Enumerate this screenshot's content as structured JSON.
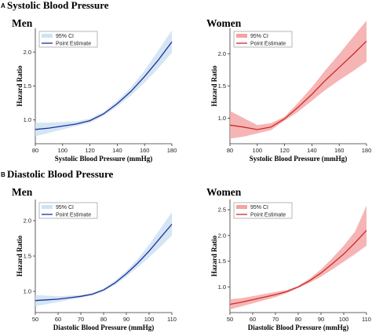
{
  "sections": [
    {
      "letter": "A",
      "title": "Systolic Blood Pressure"
    },
    {
      "letter": "B",
      "title": "Diastolic Blood Pressure"
    }
  ],
  "legend": {
    "ci_label": "95% CI",
    "estimate_label": "Point Estimate"
  },
  "colors": {
    "men_line": "#1f2f9e",
    "men_band": "#cfe3f2",
    "women_line": "#cc2a2a",
    "women_band": "#f4a3a3"
  },
  "chart_data": [
    {
      "type": "line",
      "panel": "Men",
      "xlabel": "Systolic Blood Pressure (mmHg)",
      "ylabel": "Hazard Ratio",
      "xlim": [
        80,
        180
      ],
      "ylim": [
        0.65,
        2.35
      ],
      "xticks": [
        80,
        100,
        120,
        140,
        160,
        180
      ],
      "yticks": [
        1.0,
        1.5,
        2.0
      ],
      "series": [
        {
          "name": "Point Estimate",
          "x": [
            80,
            90,
            100,
            110,
            120,
            130,
            140,
            150,
            160,
            170,
            180
          ],
          "y": [
            0.86,
            0.88,
            0.91,
            0.94,
            0.99,
            1.09,
            1.24,
            1.42,
            1.64,
            1.88,
            2.15
          ]
        },
        {
          "name": "95% CI",
          "x": [
            80,
            90,
            100,
            110,
            120,
            130,
            140,
            150,
            160,
            170,
            180
          ],
          "lower": [
            0.76,
            0.81,
            0.86,
            0.91,
            0.96,
            1.06,
            1.2,
            1.36,
            1.55,
            1.76,
            1.99
          ],
          "upper": [
            0.96,
            0.96,
            0.97,
            0.98,
            1.02,
            1.12,
            1.28,
            1.48,
            1.73,
            2.02,
            2.32
          ]
        }
      ]
    },
    {
      "type": "line",
      "panel": "Women",
      "xlabel": "Systolic Blood Pressure (mmHg)",
      "ylabel": "Hazard Ratio",
      "xlim": [
        80,
        180
      ],
      "ylim": [
        0.6,
        2.4
      ],
      "xticks": [
        80,
        100,
        120,
        140,
        160,
        180
      ],
      "yticks": [
        1.0,
        1.5,
        2.0
      ],
      "series": [
        {
          "name": "Point Estimate",
          "x": [
            80,
            90,
            100,
            110,
            120,
            130,
            140,
            150,
            160,
            170,
            180
          ],
          "y": [
            0.89,
            0.86,
            0.82,
            0.86,
            0.99,
            1.17,
            1.37,
            1.59,
            1.79,
            1.99,
            2.2
          ]
        },
        {
          "name": "95% CI",
          "x": [
            80,
            90,
            100,
            110,
            120,
            130,
            140,
            150,
            160,
            170,
            180
          ],
          "lower": [
            0.68,
            0.71,
            0.76,
            0.81,
            0.96,
            1.1,
            1.27,
            1.44,
            1.59,
            1.73,
            1.88
          ],
          "upper": [
            1.11,
            1.0,
            0.89,
            0.92,
            1.02,
            1.24,
            1.48,
            1.75,
            2.0,
            2.26,
            2.52
          ]
        }
      ]
    },
    {
      "type": "line",
      "panel": "Men",
      "xlabel": "Diastolic Blood Pressure (mmHg)",
      "ylabel": "Hazard Ratio",
      "xlim": [
        50,
        110
      ],
      "ylim": [
        0.7,
        2.3
      ],
      "xticks": [
        50,
        60,
        70,
        80,
        90,
        100,
        110
      ],
      "yticks": [
        1.0,
        1.5,
        2.0
      ],
      "series": [
        {
          "name": "Point Estimate",
          "x": [
            50,
            55,
            60,
            65,
            70,
            75,
            80,
            85,
            90,
            95,
            100,
            105,
            110
          ],
          "y": [
            0.87,
            0.88,
            0.89,
            0.91,
            0.93,
            0.96,
            1.02,
            1.12,
            1.25,
            1.4,
            1.57,
            1.76,
            1.95
          ]
        },
        {
          "name": "95% CI",
          "x": [
            50,
            55,
            60,
            65,
            70,
            75,
            80,
            85,
            90,
            95,
            100,
            105,
            110
          ],
          "lower": [
            0.79,
            0.82,
            0.85,
            0.88,
            0.91,
            0.94,
            1.0,
            1.09,
            1.21,
            1.34,
            1.48,
            1.63,
            1.79
          ],
          "upper": [
            0.95,
            0.94,
            0.93,
            0.94,
            0.95,
            0.98,
            1.04,
            1.15,
            1.29,
            1.46,
            1.66,
            1.89,
            2.12
          ]
        }
      ]
    },
    {
      "type": "line",
      "panel": "Women",
      "xlabel": "Diastolic Blood Pressure (mmHg)",
      "ylabel": "Hazard Ratio",
      "xlim": [
        50,
        110
      ],
      "ylim": [
        0.5,
        2.7
      ],
      "xticks": [
        50,
        60,
        70,
        80,
        90,
        100,
        110
      ],
      "yticks": [
        1.0,
        1.5,
        2.0,
        2.5
      ],
      "series": [
        {
          "name": "Point Estimate",
          "x": [
            50,
            55,
            60,
            65,
            70,
            75,
            80,
            85,
            90,
            95,
            100,
            105,
            110
          ],
          "y": [
            0.66,
            0.7,
            0.75,
            0.8,
            0.85,
            0.91,
            1.0,
            1.12,
            1.27,
            1.45,
            1.64,
            1.86,
            2.1
          ]
        },
        {
          "name": "95% CI",
          "x": [
            50,
            55,
            60,
            65,
            70,
            75,
            80,
            85,
            90,
            95,
            100,
            105,
            110
          ],
          "lower": [
            0.56,
            0.62,
            0.68,
            0.74,
            0.8,
            0.88,
            0.98,
            1.08,
            1.2,
            1.34,
            1.49,
            1.64,
            1.8
          ],
          "upper": [
            0.76,
            0.78,
            0.82,
            0.86,
            0.9,
            0.94,
            1.02,
            1.16,
            1.34,
            1.56,
            1.8,
            2.08,
            2.58
          ]
        }
      ]
    }
  ]
}
